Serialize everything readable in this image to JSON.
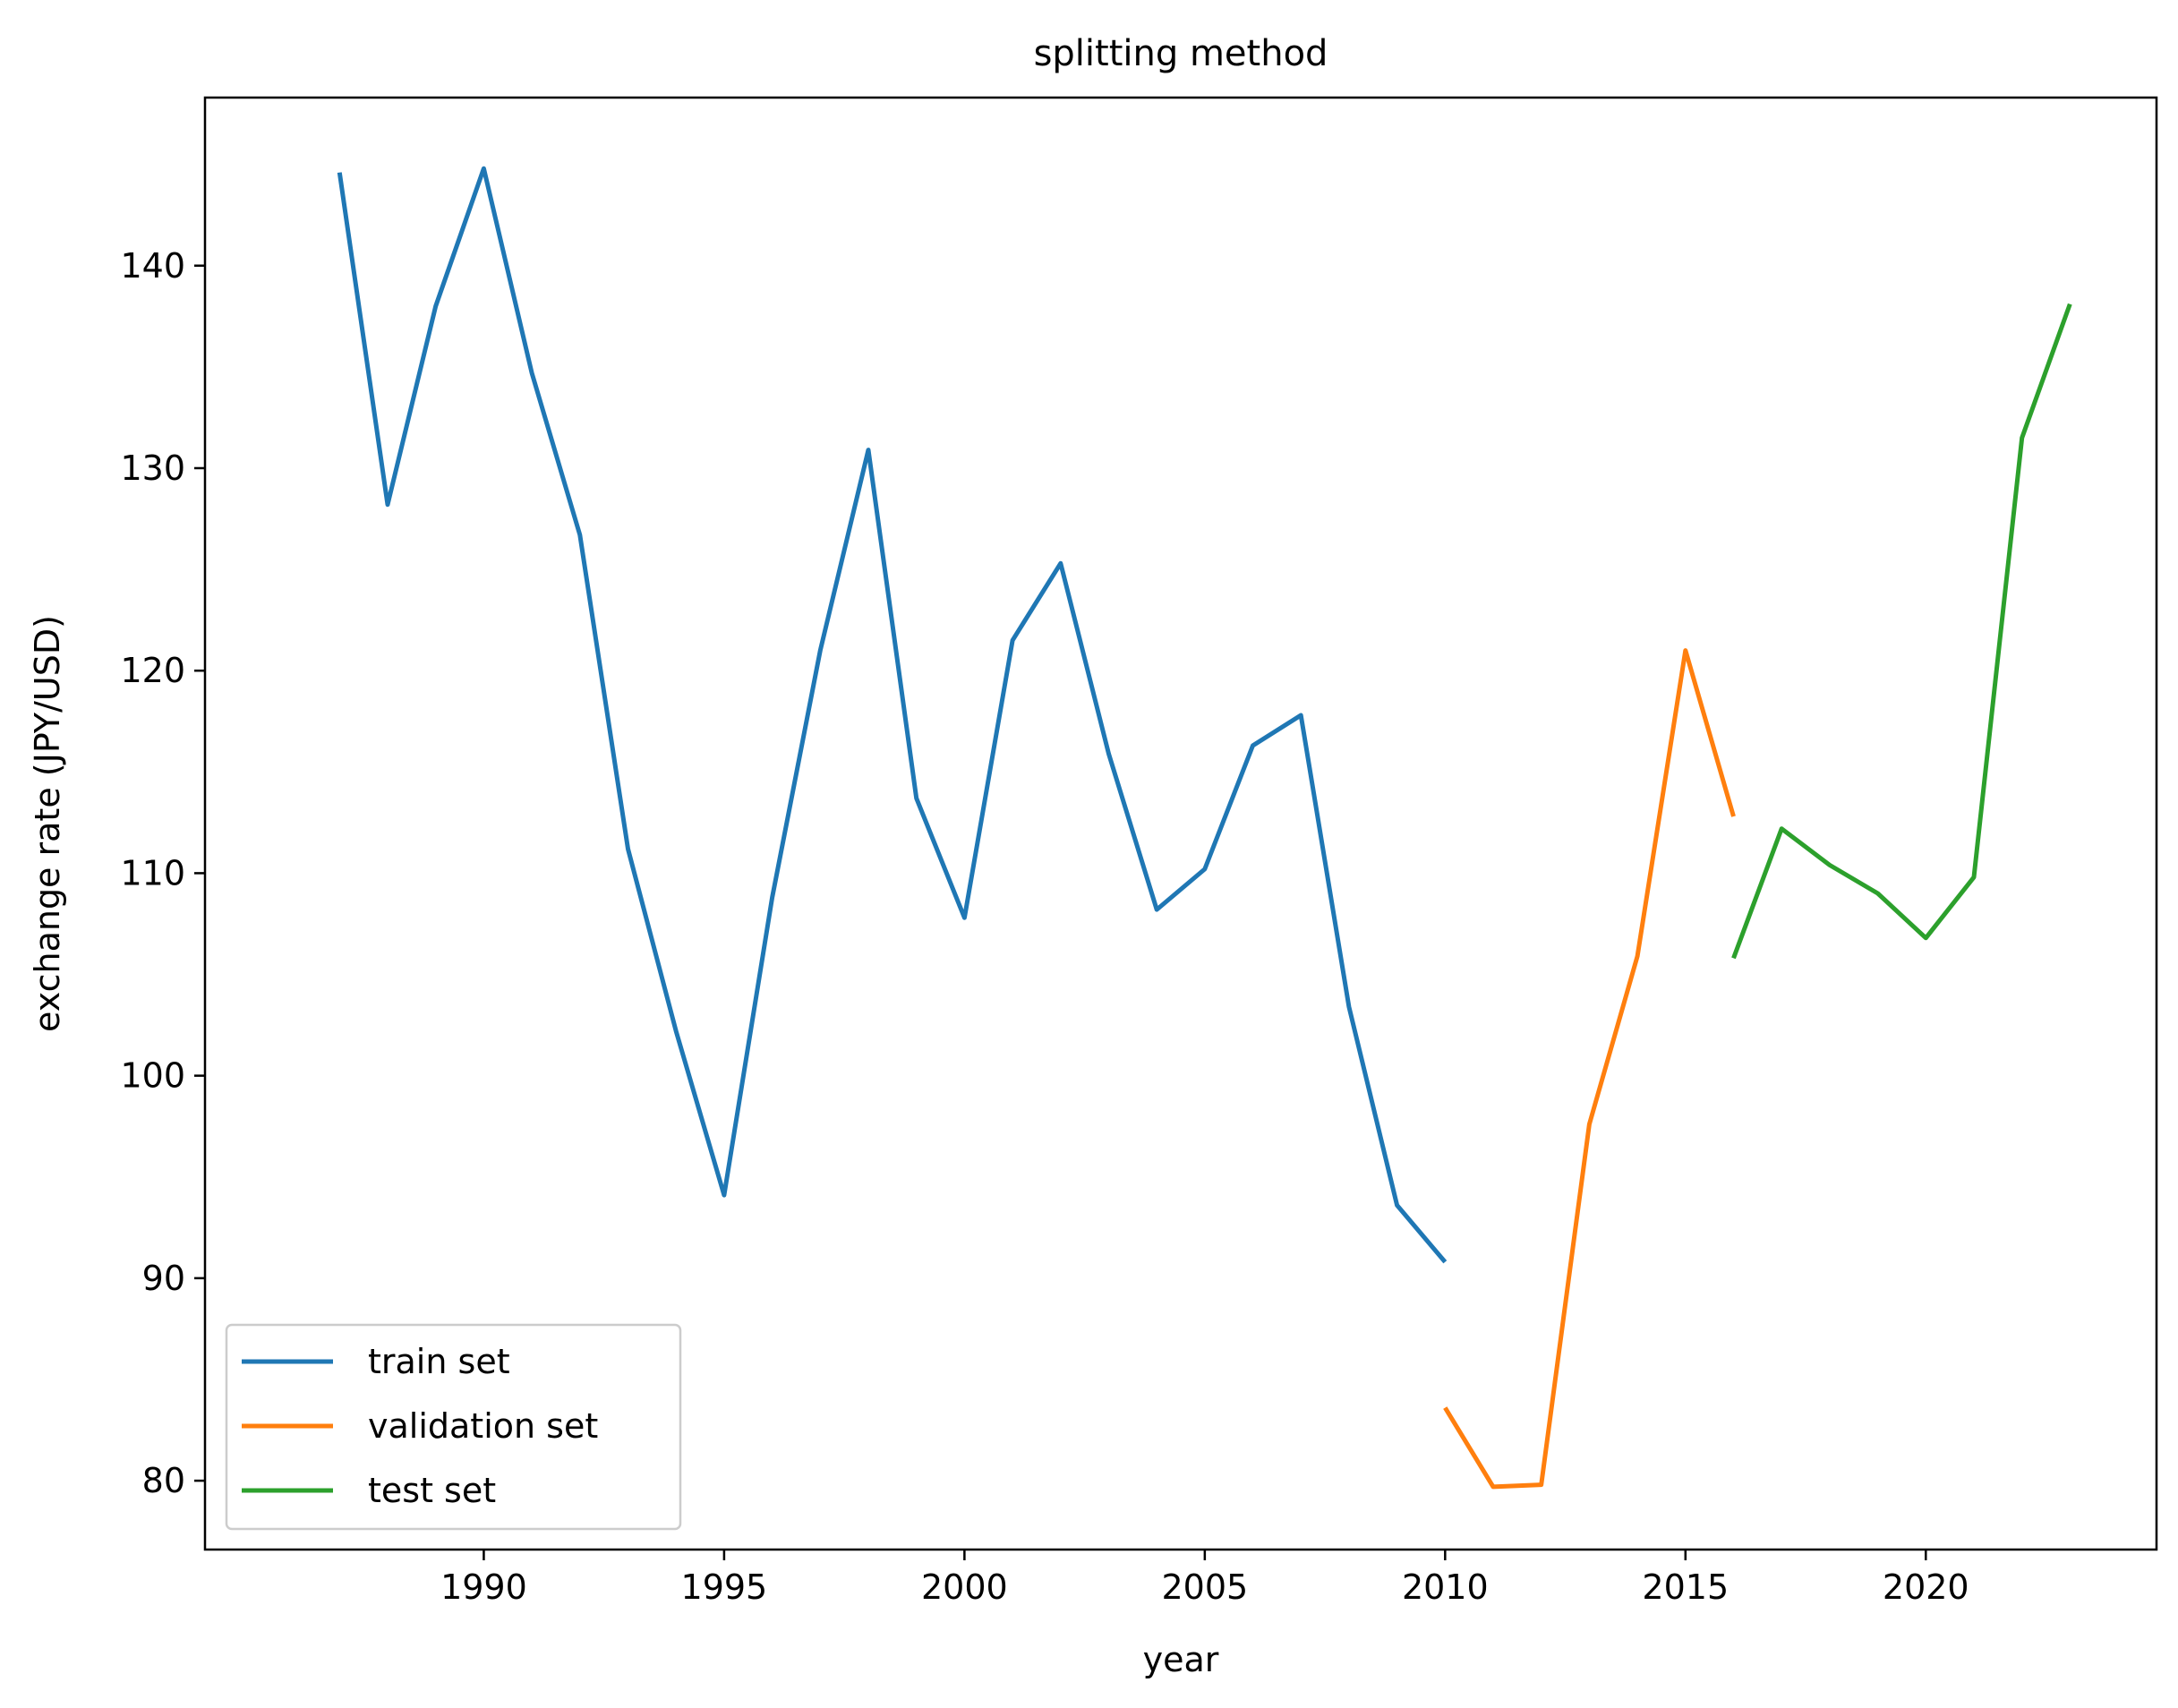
{
  "chart_data": {
    "type": "line",
    "title": "splitting method",
    "xlabel": "year",
    "ylabel": "exchange rate (JPY/USD)",
    "xlim": [
      1984.2,
      2024.8
    ],
    "ylim": [
      76.6,
      148.3
    ],
    "xticks": [
      1990,
      1995,
      2000,
      2005,
      2010,
      2015,
      2020
    ],
    "yticks": [
      80,
      90,
      100,
      110,
      120,
      130,
      140
    ],
    "grid": false,
    "legend_position": "lower-left",
    "series": [
      {
        "name": "train set",
        "color": "#1f77b4",
        "x": [
          1987,
          1988,
          1989,
          1990,
          1991,
          1992,
          1993,
          1994,
          1995,
          1996,
          1997,
          1998,
          1999,
          2000,
          2001,
          2002,
          2003,
          2004,
          2005,
          2006,
          2007,
          2008,
          2009,
          2010
        ],
        "values": [
          144.6,
          128.2,
          138.0,
          144.8,
          134.7,
          126.7,
          111.2,
          102.2,
          94.1,
          108.8,
          121.0,
          130.9,
          113.7,
          107.8,
          121.5,
          125.3,
          115.9,
          108.2,
          110.2,
          116.3,
          117.8,
          103.4,
          93.6,
          90.8
        ]
      },
      {
        "name": "validation set",
        "color": "#ff7f0e",
        "x": [
          2010,
          2011,
          2012,
          2013,
          2014,
          2015,
          2016
        ],
        "values": [
          83.6,
          79.7,
          79.8,
          97.6,
          105.9,
          121.0,
          112.8
        ]
      },
      {
        "name": "test set",
        "color": "#2ca02c",
        "x": [
          2016,
          2017,
          2018,
          2019,
          2020,
          2021,
          2022,
          2023
        ],
        "values": [
          105.8,
          112.2,
          110.4,
          109.0,
          106.8,
          109.8,
          131.5,
          138.1
        ]
      }
    ]
  }
}
